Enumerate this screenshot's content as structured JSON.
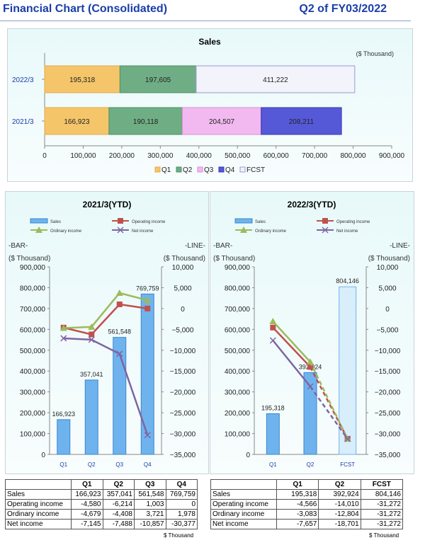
{
  "header": {
    "title": "Financial Chart (Consolidated)",
    "period": "Q2 of FY03/2022"
  },
  "colors": {
    "title": "#1a3ea8",
    "q1": "#f5c56a",
    "q2": "#6fae84",
    "q3": "#f2b9f0",
    "q4": "#5559d8",
    "fcst": "#f3f3fb",
    "bar_blue": "#6fb3ee",
    "operating": "#c0504d",
    "ordinary": "#9bbb59",
    "net": "#8064a2"
  },
  "chart_data": [
    {
      "type": "bar",
      "orientation": "horizontal-stacked",
      "title": "Sales",
      "unit": "($ Thousand)",
      "categories": [
        "2022/3",
        "2021/3"
      ],
      "series": [
        {
          "name": "Q1",
          "values": [
            195318,
            166923
          ]
        },
        {
          "name": "Q2",
          "values": [
            197605,
            190118
          ]
        },
        {
          "name": "Q3",
          "values": [
            null,
            204507
          ]
        },
        {
          "name": "Q4",
          "values": [
            null,
            208211
          ]
        },
        {
          "name": "FCST",
          "values": [
            411222,
            null
          ]
        }
      ],
      "data_labels": [
        [
          "195,318",
          "197,605",
          "",
          "",
          "411,222"
        ],
        [
          "166,923",
          "190,118",
          "204,507",
          "208,211",
          ""
        ]
      ],
      "xlim": [
        0,
        900000
      ],
      "xticks": [
        "0",
        "100,000",
        "200,000",
        "300,000",
        "400,000",
        "500,000",
        "600,000",
        "700,000",
        "800,000",
        "900,000"
      ],
      "legend": [
        "Q1",
        "Q2",
        "Q3",
        "Q4",
        "FCST"
      ]
    },
    {
      "type": "bar",
      "combo": "bar+line",
      "title": "2021/3(YTD)",
      "categories": [
        "Q1",
        "Q2",
        "Q3",
        "Q4"
      ],
      "bar_axis_label": "-BAR-",
      "line_axis_label": "-LINE-",
      "bar_unit": "($ Thousand)",
      "line_unit": "($ Thousand)",
      "bar_series": {
        "name": "Sales",
        "values": [
          166923,
          357041,
          561548,
          769759
        ],
        "labels": [
          "166,923",
          "357,041",
          "561,548",
          "769,759"
        ]
      },
      "line_series": [
        {
          "name": "Operating income",
          "values": [
            -4580,
            -6214,
            1003,
            0
          ]
        },
        {
          "name": "Ordinary income",
          "values": [
            -4679,
            -4408,
            3721,
            1978
          ]
        },
        {
          "name": "Net income",
          "values": [
            -7145,
            -7488,
            -10857,
            -30377
          ]
        }
      ],
      "ylim_bar": [
        0,
        900000
      ],
      "ylim_line": [
        -35000,
        10000
      ],
      "yticks_bar": [
        "0",
        "100,000",
        "200,000",
        "300,000",
        "400,000",
        "500,000",
        "600,000",
        "700,000",
        "800,000",
        "900,000"
      ],
      "yticks_line": [
        "−35,000",
        "−30,000",
        "−25,000",
        "−20,000",
        "−15,000",
        "−10,000",
        "−5,000",
        "0",
        "5,000",
        "10,000"
      ],
      "legend": [
        "Sales",
        "Operating income",
        "Ordinary income",
        "Net income"
      ]
    },
    {
      "type": "bar",
      "combo": "bar+line",
      "title": "2022/3(YTD)",
      "categories": [
        "Q1",
        "Q2",
        "FCST"
      ],
      "bar_axis_label": "-BAR-",
      "line_axis_label": "-LINE-",
      "bar_unit": "($ Thousand)",
      "line_unit": "($ Thousand)",
      "bar_series": {
        "name": "Sales",
        "values": [
          195318,
          392924,
          804146
        ],
        "labels": [
          "195,318",
          "392,924",
          "804,146"
        ]
      },
      "line_series": [
        {
          "name": "Operating income",
          "values": [
            -4566,
            -14010,
            -31272
          ]
        },
        {
          "name": "Ordinary income",
          "values": [
            -3083,
            -12804,
            -31272
          ]
        },
        {
          "name": "Net income",
          "values": [
            -7657,
            -18701,
            -31272
          ]
        }
      ],
      "ylim_bar": [
        0,
        900000
      ],
      "ylim_line": [
        -35000,
        10000
      ],
      "yticks_bar": [
        "0",
        "100,000",
        "200,000",
        "300,000",
        "400,000",
        "500,000",
        "600,000",
        "700,000",
        "800,000",
        "900,000"
      ],
      "yticks_line": [
        "−35,000",
        "−30,000",
        "−25,000",
        "−20,000",
        "−15,000",
        "−10,000",
        "−5,000",
        "0",
        "5,000",
        "10,000"
      ],
      "legend": [
        "Sales",
        "Operating income",
        "Ordinary income",
        "Net income"
      ]
    }
  ],
  "tables": [
    {
      "columns": [
        "",
        "Q1",
        "Q2",
        "Q3",
        "Q4"
      ],
      "rows": [
        [
          "Sales",
          "166,923",
          "357,041",
          "561,548",
          "769,759"
        ],
        [
          "Operating income",
          "-4,580",
          "-6,214",
          "1,003",
          "0"
        ],
        [
          "Ordinary income",
          "-4,679",
          "-4,408",
          "3,721",
          "1,978"
        ],
        [
          "Net income",
          "-7,145",
          "-7,488",
          "-10,857",
          "-30,377"
        ]
      ],
      "unit_note": "$ Thousand"
    },
    {
      "columns": [
        "",
        "Q1",
        "Q2",
        "FCST"
      ],
      "rows": [
        [
          "Sales",
          "195,318",
          "392,924",
          "804,146"
        ],
        [
          "Operating income",
          "-4,566",
          "-14,010",
          "-31,272"
        ],
        [
          "Ordinary income",
          "-3,083",
          "-12,804",
          "-31,272"
        ],
        [
          "Net income",
          "-7,657",
          "-18,701",
          "-31,272"
        ]
      ],
      "unit_note": "$ Thousand"
    }
  ]
}
